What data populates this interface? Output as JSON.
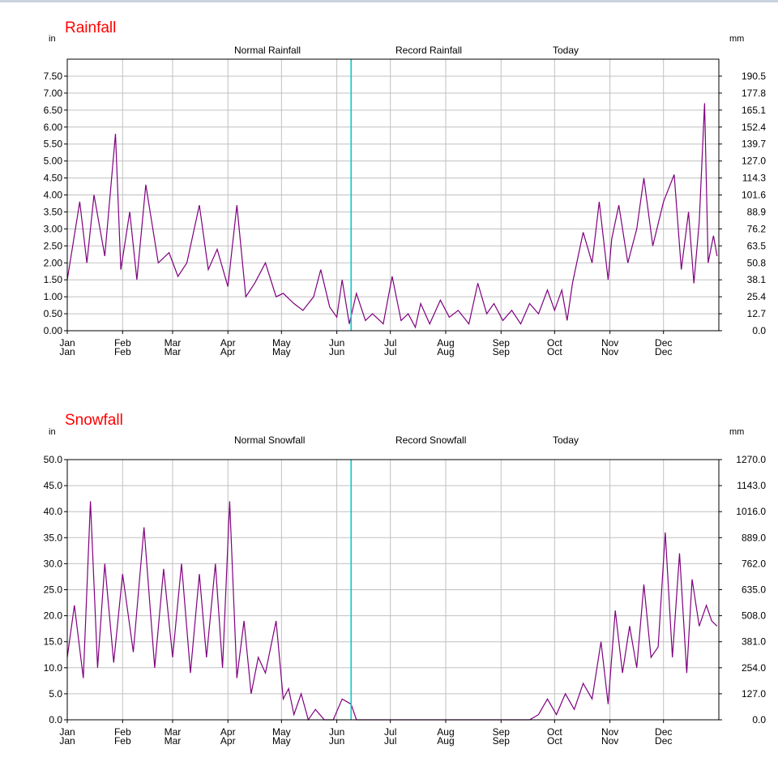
{
  "colors": {
    "title": "#ff0000",
    "normal": "#00007f",
    "record": "#7f007f",
    "today": "#00c8c8",
    "grid": "#c0c0c0"
  },
  "chart_data": [
    {
      "type": "line",
      "title": "Rainfall",
      "left_unit": "in",
      "right_unit": "mm",
      "legend": [
        "Normal Rainfall",
        "Record Rainfall",
        "Today"
      ],
      "ylim": [
        0,
        8
      ],
      "y_ticks": [
        "0.00",
        "0.50",
        "1.00",
        "1.50",
        "2.00",
        "2.50",
        "3.00",
        "3.50",
        "4.00",
        "4.50",
        "5.00",
        "5.50",
        "6.00",
        "6.50",
        "7.00",
        "7.50"
      ],
      "y_ticks_right": [
        "0.0",
        "12.7",
        "25.4",
        "38.1",
        "50.8",
        "63.5",
        "76.2",
        "88.9",
        "101.6",
        "114.3",
        "127.0",
        "139.7",
        "152.4",
        "165.1",
        "177.8",
        "190.5"
      ],
      "months": [
        "Jan",
        "Feb",
        "Mar",
        "Apr",
        "May",
        "Jun",
        "Jul",
        "Aug",
        "Sep",
        "Oct",
        "Nov",
        "Dec"
      ],
      "today_day": 160,
      "series": [
        {
          "name": "Record Rainfall",
          "x": [
            1,
            8,
            12,
            16,
            22,
            28,
            31,
            36,
            40,
            45,
            52,
            58,
            63,
            68,
            75,
            80,
            85,
            91,
            96,
            101,
            106,
            112,
            118,
            122,
            128,
            133,
            139,
            143,
            148,
            152,
            155,
            159,
            163,
            168,
            172,
            178,
            183,
            188,
            192,
            196,
            199,
            204,
            210,
            215,
            220,
            226,
            231,
            236,
            240,
            245,
            250,
            255,
            260,
            265,
            270,
            274,
            278,
            281,
            284,
            290,
            295,
            299,
            304,
            306,
            310,
            315,
            320,
            324,
            329,
            335,
            341,
            345,
            349,
            352,
            355,
            358,
            360,
            363,
            365
          ],
          "values": [
            1.5,
            3.8,
            2.0,
            4.0,
            2.2,
            5.8,
            1.8,
            3.5,
            1.5,
            4.3,
            2.0,
            2.3,
            1.6,
            2.0,
            3.7,
            1.8,
            2.4,
            1.3,
            3.7,
            1.0,
            1.4,
            2.0,
            1.0,
            1.1,
            0.8,
            0.6,
            1.0,
            1.8,
            0.7,
            0.4,
            1.5,
            0.2,
            1.1,
            0.3,
            0.5,
            0.2,
            1.6,
            0.3,
            0.5,
            0.1,
            0.8,
            0.2,
            0.9,
            0.4,
            0.6,
            0.2,
            1.4,
            0.5,
            0.8,
            0.3,
            0.6,
            0.2,
            0.8,
            0.5,
            1.2,
            0.6,
            1.2,
            0.3,
            1.4,
            2.9,
            2.0,
            3.8,
            1.5,
            2.7,
            3.7,
            2.0,
            3.0,
            4.5,
            2.5,
            3.8,
            4.6,
            1.8,
            3.5,
            1.4,
            3.2,
            6.7,
            2.0,
            2.8,
            2.2
          ]
        }
      ]
    },
    {
      "type": "line",
      "title": "Snowfall",
      "left_unit": "in",
      "right_unit": "mm",
      "legend": [
        "Normal Snowfall",
        "Record Snowfall",
        "Today"
      ],
      "ylim": [
        0,
        50
      ],
      "y_ticks": [
        "0.0",
        "5.0",
        "10.0",
        "15.0",
        "20.0",
        "25.0",
        "30.0",
        "35.0",
        "40.0",
        "45.0",
        "50.0"
      ],
      "y_ticks_right": [
        "0.0",
        "127.0",
        "254.0",
        "381.0",
        "508.0",
        "635.0",
        "762.0",
        "889.0",
        "1016.0",
        "1143.0",
        "1270.0"
      ],
      "months": [
        "Jan",
        "Feb",
        "Mar",
        "Apr",
        "May",
        "Jun",
        "Jul",
        "Aug",
        "Sep",
        "Oct",
        "Nov",
        "Dec"
      ],
      "today_day": 160,
      "series": [
        {
          "name": "Record Snowfall",
          "x": [
            1,
            5,
            10,
            14,
            18,
            22,
            27,
            32,
            38,
            44,
            50,
            55,
            60,
            65,
            70,
            75,
            79,
            84,
            88,
            92,
            96,
            100,
            104,
            108,
            112,
            118,
            122,
            125,
            128,
            132,
            136,
            140,
            145,
            150,
            155,
            160,
            163,
            168,
            260,
            265,
            270,
            275,
            280,
            285,
            290,
            295,
            300,
            304,
            308,
            312,
            316,
            320,
            324,
            328,
            332,
            336,
            340,
            344,
            348,
            351,
            355,
            359,
            362,
            365
          ],
          "values": [
            12,
            22,
            8,
            42,
            10,
            30,
            11,
            28,
            13,
            37,
            10,
            29,
            12,
            30,
            9,
            28,
            12,
            30,
            10,
            42,
            8,
            19,
            5,
            12,
            9,
            19,
            4,
            6,
            1,
            5,
            0,
            2,
            0,
            0,
            4,
            3,
            0,
            0,
            0,
            1,
            4,
            1,
            5,
            2,
            7,
            4,
            15,
            3,
            21,
            9,
            18,
            10,
            26,
            12,
            14,
            36,
            12,
            32,
            9,
            27,
            18,
            22,
            19,
            18
          ]
        }
      ]
    }
  ]
}
